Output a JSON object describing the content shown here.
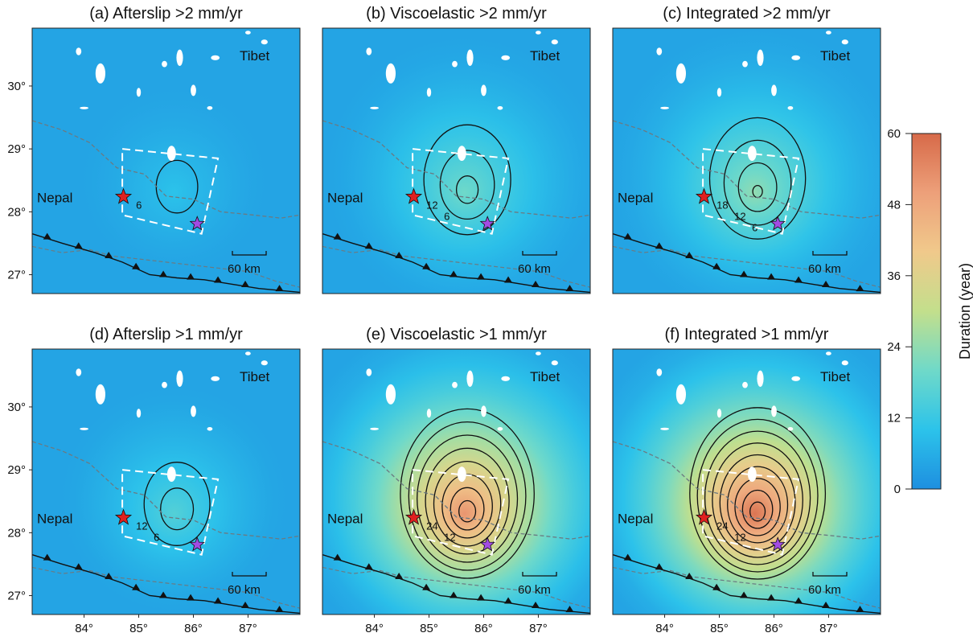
{
  "panels": [
    {
      "id": "a",
      "title": "(a) Afterslip >2 mm/yr",
      "peak": 10,
      "spread": 0.8,
      "contour_labels": [
        "6"
      ]
    },
    {
      "id": "b",
      "title": "(b) Viscoelastic >2 mm/yr",
      "peak": 20,
      "spread": 1.15,
      "contour_labels": [
        "12",
        "6"
      ]
    },
    {
      "id": "c",
      "title": "(c) Integrated >2 mm/yr",
      "peak": 24,
      "spread": 1.2,
      "contour_labels": [
        "18",
        "12",
        "6"
      ]
    },
    {
      "id": "d",
      "title": "(d) Afterslip >1 mm/yr",
      "peak": 16,
      "spread": 0.95,
      "contour_labels": [
        "12",
        "6"
      ]
    },
    {
      "id": "e",
      "title": "(e) Viscoelastic >1 mm/yr",
      "peak": 52,
      "spread": 1.45,
      "contour_labels": [
        "24",
        "12"
      ]
    },
    {
      "id": "f",
      "title": "(f) Integrated >1 mm/yr",
      "peak": 58,
      "spread": 1.45,
      "contour_labels": [
        "24",
        "12"
      ]
    }
  ],
  "places": {
    "north": "Tibet",
    "south": "Nepal"
  },
  "scale_bar": "60 km",
  "lat_ticks": [
    "30°",
    "29°",
    "28°",
    "27°"
  ],
  "lon_ticks": [
    "84°",
    "85°",
    "86°",
    "87°"
  ],
  "colorbar": {
    "label": "Duration (year)",
    "ticks": [
      "60",
      "48",
      "36",
      "24",
      "12",
      "0"
    ],
    "min": 0,
    "max": 60,
    "colors": [
      "#1e8fe0",
      "#2cc3ea",
      "#6fd9c9",
      "#c3df8c",
      "#f0c98b",
      "#eda07a",
      "#d76a49"
    ]
  },
  "markers": {
    "epicenter_color": "#e0201f",
    "aftershock_color": "#a24be3"
  },
  "chart_data": {
    "type": "heatmap",
    "quantity": "Duration (year)",
    "range": [
      0,
      60
    ],
    "x_axis_ticks": [
      "84°",
      "85°",
      "86°",
      "87°"
    ],
    "y_axis_ticks": [
      "27°",
      "28°",
      "29°",
      "30°"
    ],
    "contour_interval_years": 6,
    "panel_peak_duration_years": {
      "a": 10,
      "b": 20,
      "c": 24,
      "d": 16,
      "e": 52,
      "f": 58
    }
  }
}
